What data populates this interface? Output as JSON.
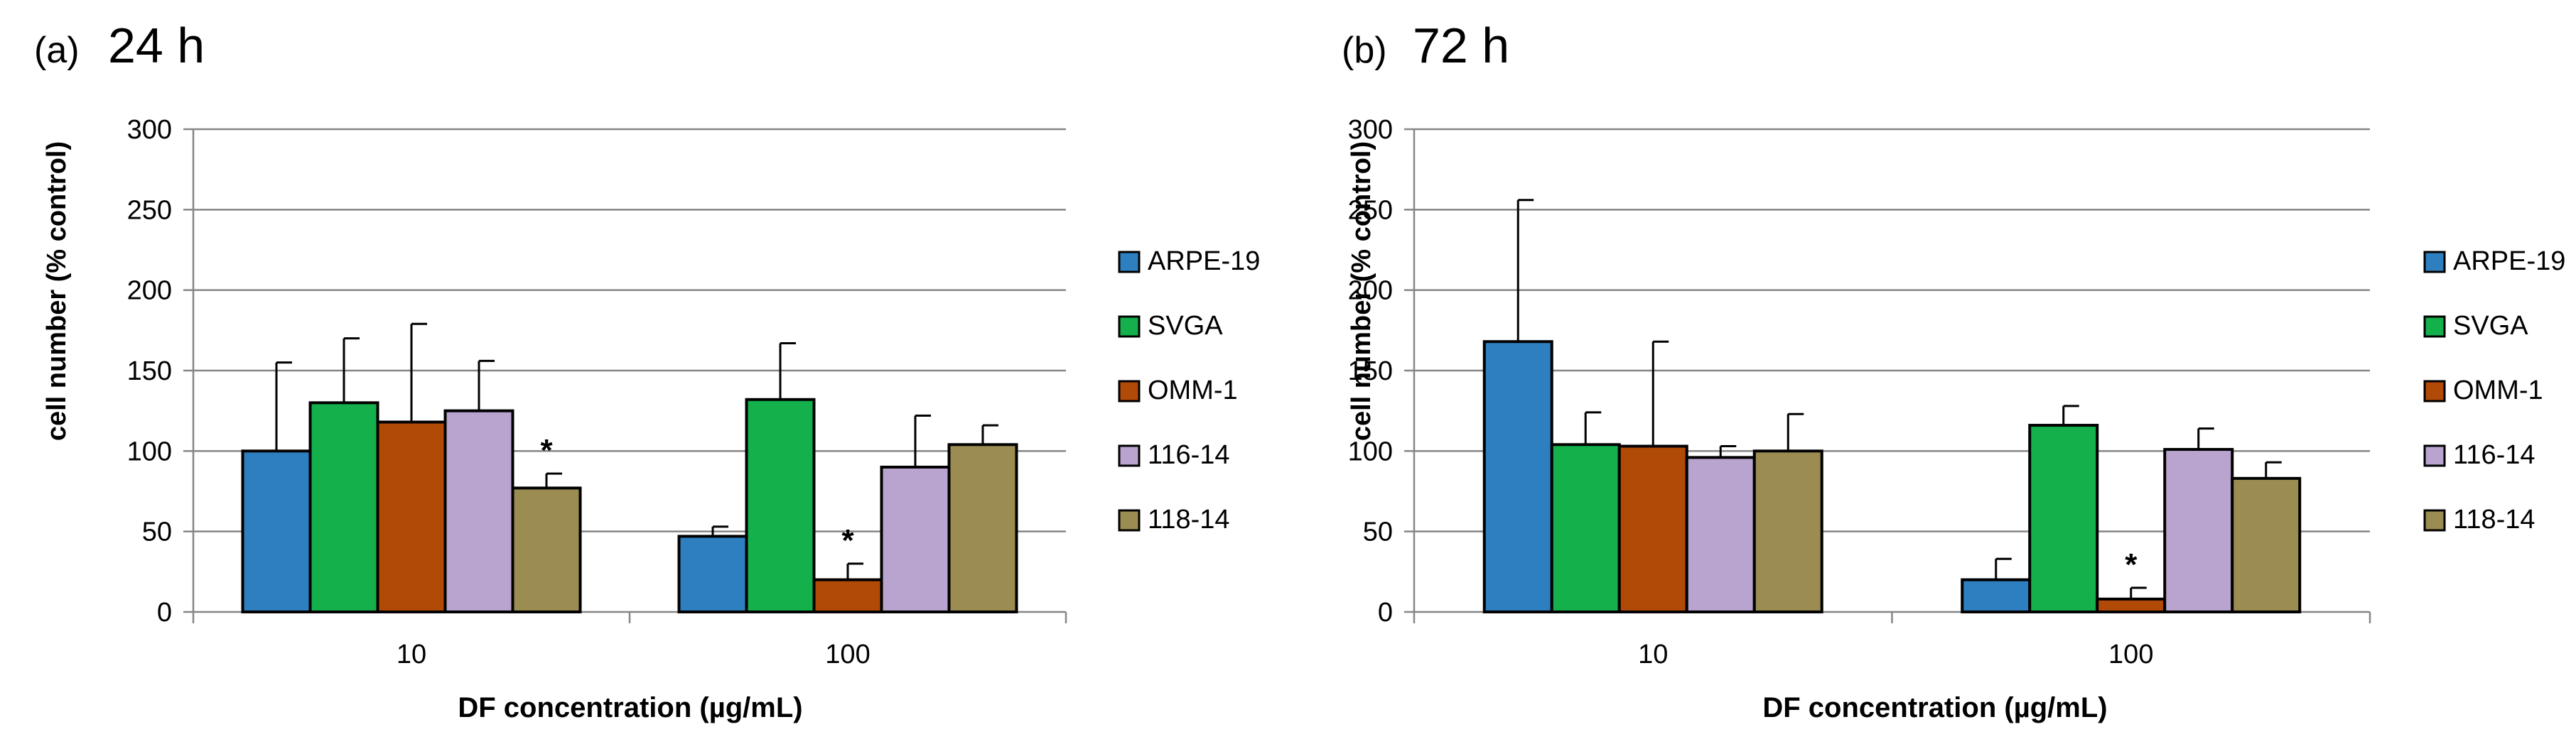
{
  "chart_data": [
    {
      "type": "bar",
      "panel_label": "(a)",
      "title": "24 h",
      "xlabel": "DF concentration (µg/mL)",
      "ylabel": "cell number (% control)",
      "ylim": [
        0,
        300
      ],
      "yticks": [
        0,
        50,
        100,
        150,
        200,
        250,
        300
      ],
      "grid": true,
      "legend_position": "right",
      "categories": [
        "10",
        "100"
      ],
      "series": [
        {
          "name": "ARPE-19",
          "color": "#2E7FC0",
          "values": [
            100,
            47
          ],
          "errors": [
            55,
            6
          ],
          "significant": [
            false,
            false
          ]
        },
        {
          "name": "SVGA",
          "color": "#13B04C",
          "values": [
            130,
            132
          ],
          "errors": [
            40,
            35
          ],
          "significant": [
            false,
            false
          ]
        },
        {
          "name": "OMM-1",
          "color": "#B04A06",
          "values": [
            118,
            20
          ],
          "errors": [
            61,
            10
          ],
          "significant": [
            false,
            true
          ]
        },
        {
          "name": "116-14",
          "color": "#B8A4CE",
          "values": [
            125,
            90
          ],
          "errors": [
            31,
            32
          ],
          "significant": [
            false,
            false
          ]
        },
        {
          "name": "118-14",
          "color": "#9B8C51",
          "values": [
            77,
            104
          ],
          "errors": [
            9,
            12
          ],
          "significant": [
            true,
            false
          ]
        }
      ],
      "annotation": "*"
    },
    {
      "type": "bar",
      "panel_label": "(b)",
      "title": "72 h",
      "xlabel": "DF concentration (µg/mL)",
      "ylabel": "cell number (% control)",
      "ylim": [
        0,
        300
      ],
      "yticks": [
        0,
        50,
        100,
        150,
        200,
        250,
        300
      ],
      "grid": true,
      "legend_position": "right",
      "categories": [
        "10",
        "100"
      ],
      "series": [
        {
          "name": "ARPE-19",
          "color": "#2E7FC0",
          "values": [
            168,
            20
          ],
          "errors": [
            88,
            13
          ],
          "significant": [
            false,
            false
          ]
        },
        {
          "name": "SVGA",
          "color": "#13B04C",
          "values": [
            104,
            116
          ],
          "errors": [
            20,
            12
          ],
          "significant": [
            false,
            false
          ]
        },
        {
          "name": "OMM-1",
          "color": "#B04A06",
          "values": [
            103,
            8
          ],
          "errors": [
            65,
            7
          ],
          "significant": [
            false,
            true
          ]
        },
        {
          "name": "116-14",
          "color": "#B8A4CE",
          "values": [
            96,
            101
          ],
          "errors": [
            7,
            13
          ],
          "significant": [
            false,
            false
          ]
        },
        {
          "name": "118-14",
          "color": "#9B8C51",
          "values": [
            100,
            83
          ],
          "errors": [
            23,
            10
          ],
          "significant": [
            false,
            false
          ]
        }
      ],
      "annotation": "*"
    }
  ]
}
